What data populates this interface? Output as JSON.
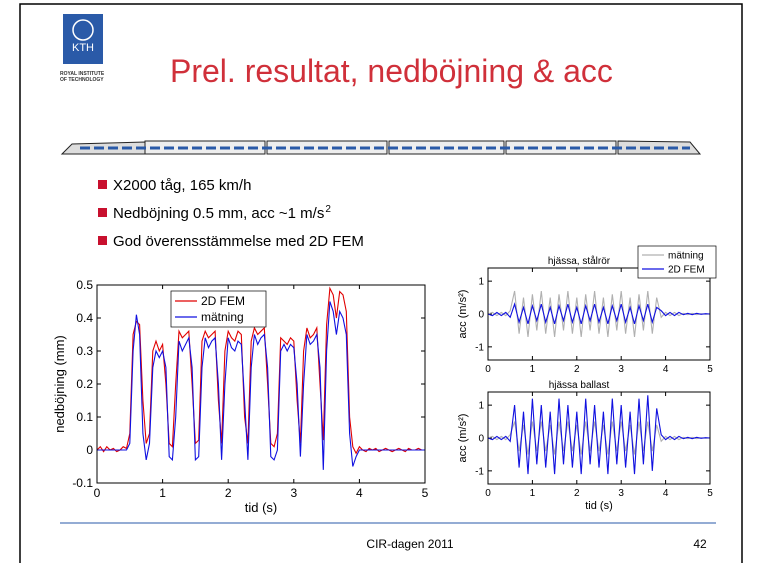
{
  "header": {
    "logo_text": "KTH",
    "logo_caption": [
      "ROYAL INSTITUTE",
      "OF TECHNOLOGY"
    ],
    "title": "Prel. resultat, nedböjning & acc"
  },
  "bullets": [
    {
      "text": "X2000 tåg, 165 km/h"
    },
    {
      "text": "Nedböjning 0.5 mm, acc ~1 m/s",
      "sup": "2"
    },
    {
      "text": "God överensstämmelse med 2D FEM"
    }
  ],
  "footer": {
    "center": "CIR-dagen 2011",
    "page": "42"
  },
  "chart_data": [
    {
      "type": "line",
      "xlabel": "tid (s)",
      "ylabel": "nedböjning (mm)",
      "xlim": [
        0,
        5
      ],
      "ylim": [
        -0.1,
        0.5
      ],
      "xticks": [
        0,
        1,
        2,
        3,
        4,
        5
      ],
      "yticks": [
        -0.1,
        0,
        0.1,
        0.2,
        0.3,
        0.4,
        0.5
      ],
      "legend": "upper center",
      "x": [
        0,
        0.05,
        0.1,
        0.15,
        0.2,
        0.25,
        0.3,
        0.35,
        0.4,
        0.45,
        0.5,
        0.55,
        0.6,
        0.65,
        0.7,
        0.75,
        0.8,
        0.85,
        0.9,
        0.95,
        1,
        1.05,
        1.1,
        1.15,
        1.2,
        1.25,
        1.3,
        1.35,
        1.4,
        1.45,
        1.5,
        1.55,
        1.6,
        1.65,
        1.7,
        1.75,
        1.8,
        1.85,
        1.9,
        1.95,
        2,
        2.05,
        2.1,
        2.15,
        2.2,
        2.25,
        2.3,
        2.35,
        2.4,
        2.45,
        2.5,
        2.55,
        2.6,
        2.65,
        2.7,
        2.75,
        2.8,
        2.85,
        2.9,
        2.95,
        3,
        3.05,
        3.1,
        3.15,
        3.2,
        3.25,
        3.3,
        3.35,
        3.4,
        3.45,
        3.5,
        3.55,
        3.6,
        3.65,
        3.7,
        3.75,
        3.8,
        3.85,
        3.9,
        3.95,
        4,
        4.05,
        4.1,
        4.15,
        4.2,
        4.25,
        4.3,
        4.35,
        4.4,
        4.45,
        4.5,
        4.55,
        4.6,
        4.65,
        4.7,
        4.75,
        4.8,
        4.85,
        4.9,
        4.95,
        5
      ],
      "series": [
        {
          "name": "2D FEM",
          "color": "#e00000",
          "values": [
            0,
            0.01,
            -0.005,
            0.01,
            0,
            0.005,
            -0.005,
            0,
            0.01,
            0.005,
            0.05,
            0.35,
            0.39,
            0.38,
            0.15,
            0.02,
            0.05,
            0.3,
            0.33,
            0.3,
            0.32,
            0.2,
            0.02,
            0.01,
            0.2,
            0.36,
            0.34,
            0.35,
            0.36,
            0.2,
            0.02,
            0.03,
            0.33,
            0.36,
            0.34,
            0.35,
            0.36,
            0.15,
            0.02,
            0.3,
            0.36,
            0.34,
            0.33,
            0.36,
            0.35,
            0.1,
            0.02,
            0.33,
            0.37,
            0.35,
            0.36,
            0.37,
            0.2,
            0.02,
            0.01,
            0.05,
            0.34,
            0.33,
            0.32,
            0.34,
            0.33,
            0.15,
            0.02,
            0.3,
            0.37,
            0.34,
            0.35,
            0.37,
            0.2,
            0.03,
            0.38,
            0.49,
            0.47,
            0.4,
            0.48,
            0.47,
            0.42,
            0.1,
            0.01,
            -0.01,
            0.01,
            0,
            -0.005,
            0.005,
            0,
            0.005,
            -0.005,
            0,
            0.005,
            0,
            -0.005,
            0,
            0.005,
            0,
            -0.005,
            0.005,
            0,
            0,
            0.005,
            0,
            0
          ]
        },
        {
          "name": "mätning",
          "color": "#1010e0",
          "values": [
            0,
            0,
            0,
            0,
            0,
            0,
            0,
            0,
            0,
            0,
            0.02,
            0.3,
            0.41,
            0.35,
            0.05,
            -0.03,
            0.02,
            0.25,
            0.3,
            0.28,
            0.3,
            0.25,
            -0.02,
            -0.03,
            0.1,
            0.33,
            0.3,
            0.32,
            0.34,
            0.25,
            -0.03,
            -0.02,
            0.25,
            0.34,
            0.31,
            0.33,
            0.34,
            0.2,
            -0.03,
            0.2,
            0.34,
            0.31,
            0.3,
            0.33,
            0.32,
            0.15,
            -0.03,
            0.25,
            0.35,
            0.32,
            0.34,
            0.35,
            0.25,
            -0.02,
            -0.03,
            0,
            0.3,
            0.32,
            0.3,
            0.32,
            0.31,
            0.2,
            -0.02,
            0.2,
            0.35,
            0.32,
            0.33,
            0.35,
            0.25,
            -0.06,
            0.3,
            0.45,
            0.42,
            0.35,
            0.42,
            0.4,
            0.35,
            0.05,
            -0.05,
            -0.02,
            0,
            0,
            0,
            0,
            0,
            0,
            0,
            0,
            0,
            0,
            0,
            0,
            0,
            0,
            0,
            0,
            0,
            0,
            0,
            0,
            0
          ]
        }
      ]
    },
    {
      "type": "line",
      "title": "hjässa, stålrör",
      "ylabel": "acc (m/s²)",
      "xlim": [
        0,
        5
      ],
      "ylim": [
        -1.4,
        1.4
      ],
      "xticks": [
        0,
        1,
        2,
        3,
        4,
        5
      ],
      "yticks": [
        -1,
        0,
        1
      ],
      "legend": "upper right",
      "x": [
        0,
        0.1,
        0.2,
        0.3,
        0.4,
        0.5,
        0.6,
        0.7,
        0.8,
        0.9,
        1,
        1.1,
        1.2,
        1.3,
        1.4,
        1.5,
        1.6,
        1.7,
        1.8,
        1.9,
        2,
        2.1,
        2.2,
        2.3,
        2.4,
        2.5,
        2.6,
        2.7,
        2.8,
        2.9,
        3,
        3.1,
        3.2,
        3.3,
        3.4,
        3.5,
        3.6,
        3.7,
        3.8,
        3.9,
        4,
        4.1,
        4.2,
        4.3,
        4.4,
        4.5,
        4.6,
        4.7,
        4.8,
        4.9,
        5
      ],
      "series": [
        {
          "name": "mätning",
          "color": "#b0b0b0",
          "values": [
            0,
            0.05,
            -0.05,
            0.05,
            -0.05,
            0.1,
            0.7,
            -0.6,
            0.5,
            -0.7,
            0.6,
            -0.5,
            0.7,
            -0.6,
            0.5,
            -0.7,
            0.6,
            -0.5,
            0.7,
            -0.6,
            0.5,
            -0.7,
            0.6,
            -0.5,
            0.7,
            -0.6,
            0.5,
            -0.7,
            0.6,
            -0.5,
            0.7,
            -0.6,
            0.5,
            -0.7,
            0.6,
            -0.5,
            0.7,
            -0.6,
            0.5,
            -0.1,
            0.05,
            -0.05,
            0.05,
            -0.05,
            0.02,
            -0.02,
            0.02,
            -0.02,
            0.01,
            -0.01,
            0
          ]
        },
        {
          "name": "2D FEM",
          "color": "#1010e0",
          "values": [
            0,
            -0.05,
            0.05,
            -0.05,
            0.05,
            -0.1,
            0.3,
            -0.25,
            0.2,
            -0.3,
            0.25,
            -0.2,
            0.3,
            -0.25,
            0.2,
            -0.3,
            0.25,
            -0.2,
            0.3,
            -0.25,
            0.2,
            -0.3,
            0.25,
            -0.2,
            0.3,
            -0.25,
            0.2,
            -0.3,
            0.25,
            -0.2,
            0.3,
            -0.25,
            0.2,
            -0.3,
            0.25,
            -0.2,
            0.3,
            -0.25,
            0.2,
            0.1,
            -0.05,
            0.05,
            -0.05,
            0.05,
            -0.02,
            0.02,
            -0.02,
            0.02,
            -0.01,
            0.01,
            0
          ]
        }
      ]
    },
    {
      "type": "line",
      "title": "hjässa ballast",
      "xlabel": "tid (s)",
      "ylabel": "acc (m/s²)",
      "xlim": [
        0,
        5
      ],
      "ylim": [
        -1.4,
        1.4
      ],
      "xticks": [
        0,
        1,
        2,
        3,
        4,
        5
      ],
      "yticks": [
        -1,
        0,
        1
      ],
      "x": [
        0,
        0.1,
        0.2,
        0.3,
        0.4,
        0.5,
        0.6,
        0.7,
        0.8,
        0.9,
        1,
        1.1,
        1.2,
        1.3,
        1.4,
        1.5,
        1.6,
        1.7,
        1.8,
        1.9,
        2,
        2.1,
        2.2,
        2.3,
        2.4,
        2.5,
        2.6,
        2.7,
        2.8,
        2.9,
        3,
        3.1,
        3.2,
        3.3,
        3.4,
        3.5,
        3.6,
        3.7,
        3.8,
        3.9,
        4,
        4.1,
        4.2,
        4.3,
        4.4,
        4.5,
        4.6,
        4.7,
        4.8,
        4.9,
        5
      ],
      "series": [
        {
          "color": "#b0b0b0",
          "values": [
            0,
            0.05,
            -0.05,
            0.05,
            -0.05,
            0.1,
            0.5,
            -0.4,
            0.4,
            -0.5,
            0.5,
            -0.4,
            0.5,
            -0.4,
            0.4,
            -0.5,
            0.5,
            -0.4,
            0.5,
            -0.4,
            0.4,
            -0.5,
            0.5,
            -0.4,
            0.5,
            -0.4,
            0.4,
            -0.5,
            0.5,
            -0.4,
            0.5,
            -0.4,
            0.4,
            -0.5,
            0.5,
            -0.4,
            0.5,
            -0.4,
            0.4,
            -0.1,
            0.05,
            -0.05,
            0.05,
            -0.05,
            0.02,
            -0.02,
            0.02,
            -0.02,
            0.01,
            -0.01,
            0
          ]
        },
        {
          "color": "#1010e0",
          "values": [
            0,
            -0.05,
            0.05,
            -0.05,
            0.05,
            -0.1,
            1,
            -0.9,
            0.8,
            -1.1,
            1.2,
            -0.8,
            1,
            -0.9,
            0.8,
            -1.1,
            1.2,
            -0.8,
            1,
            -0.9,
            0.8,
            -1.1,
            1.2,
            -0.8,
            1,
            -0.9,
            0.8,
            -1.1,
            1.2,
            -0.8,
            1,
            -0.9,
            0.8,
            -1.1,
            1.2,
            -0.8,
            1.3,
            -1,
            0.9,
            0.1,
            -0.05,
            0.05,
            -0.05,
            0.05,
            -0.02,
            0.02,
            -0.02,
            0.02,
            -0.01,
            0.01,
            0
          ]
        }
      ]
    }
  ]
}
